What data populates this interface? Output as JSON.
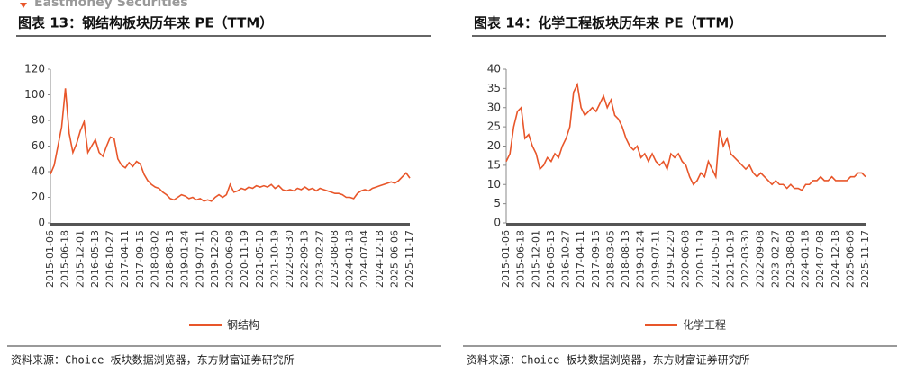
{
  "header": "Eastmoney Securities",
  "chart_data": [
    {
      "type": "line",
      "title": "图表 13：钢结构板块历年来 PE（TTM）",
      "categories": [
        "2015-01-06",
        null,
        null,
        null,
        "2015-06-18",
        null,
        null,
        null,
        "2015-12-01",
        null,
        null,
        null,
        "2016-05-13",
        null,
        null,
        null,
        "2016-10-27",
        null,
        null,
        null,
        "2017-04-11",
        null,
        null,
        null,
        "2017-09-15",
        null,
        null,
        null,
        "2018-03-02",
        null,
        null,
        null,
        "2018-08-13",
        null,
        null,
        null,
        "2019-01-24",
        null,
        null,
        null,
        "2019-07-11",
        null,
        null,
        null,
        "2019-12-20",
        null,
        null,
        null,
        "2020-06-08",
        null,
        null,
        null,
        "2020-11-19",
        null,
        null,
        null,
        "2021-05-10",
        null,
        null,
        null,
        "2021-10-19",
        null,
        null,
        null,
        "2022-03-30",
        null,
        null,
        null,
        "2022-09-13",
        null,
        null,
        null,
        "2023-02-27",
        null,
        null,
        null,
        "2023-08-08",
        null,
        null,
        null,
        "2024-01-18",
        null,
        null,
        null,
        "2024-07-04",
        null,
        null,
        null,
        "2024-12-18",
        null,
        null,
        null,
        "2025-06-06",
        null,
        null,
        null,
        "2025-11-17"
      ],
      "series": [
        {
          "name": "钢结构",
          "color": "#e8562a",
          "values": [
            38,
            45,
            60,
            75,
            105,
            70,
            55,
            62,
            72,
            79,
            55,
            60,
            65,
            55,
            52,
            60,
            67,
            66,
            50,
            45,
            43,
            47,
            44,
            48,
            46,
            38,
            33,
            30,
            28,
            27,
            24,
            22,
            19,
            18,
            20,
            22,
            21,
            19,
            20,
            18,
            19,
            17,
            18,
            17,
            20,
            22,
            20,
            22,
            30,
            24,
            25,
            27,
            26,
            28,
            27,
            29,
            28,
            29,
            28,
            30,
            27,
            29,
            26,
            25,
            26,
            25,
            27,
            26,
            28,
            26,
            27,
            25,
            27,
            26,
            25,
            24,
            23,
            23,
            22,
            20,
            20,
            19,
            23,
            25,
            26,
            25,
            27,
            28,
            29,
            30,
            31,
            32,
            31,
            33,
            36,
            39,
            35
          ]
        }
      ],
      "ylim": [
        0,
        120
      ],
      "yticks": [
        0,
        20,
        40,
        60,
        80,
        100,
        120
      ],
      "source": "资料来源：Choice 板块数据浏览器，东方财富证券研究所"
    },
    {
      "type": "line",
      "title": "图表 14：化学工程板块历年来 PE（TTM）",
      "categories": [
        "2015-01-06",
        null,
        null,
        null,
        "2015-06-18",
        null,
        null,
        null,
        "2015-12-01",
        null,
        null,
        null,
        "2016-05-13",
        null,
        null,
        null,
        "2016-10-27",
        null,
        null,
        null,
        "2017-04-11",
        null,
        null,
        null,
        "2017-09-15",
        null,
        null,
        null,
        "2018-03-05",
        null,
        null,
        null,
        "2018-08-13",
        null,
        null,
        null,
        "2019-01-24",
        null,
        null,
        null,
        "2019-07-11",
        null,
        null,
        null,
        "2019-12-20",
        null,
        null,
        null,
        "2020-06-08",
        null,
        null,
        null,
        "2020-11-19",
        null,
        null,
        null,
        "2021-05-10",
        null,
        null,
        null,
        "2021-10-19",
        null,
        null,
        null,
        "2022-03-30",
        null,
        null,
        null,
        "2022-09-08",
        null,
        null,
        null,
        "2023-02-27",
        null,
        null,
        null,
        "2023-08-08",
        null,
        null,
        null,
        "2024-01-18",
        null,
        null,
        null,
        "2024-07-08",
        null,
        null,
        null,
        "2024-12-18",
        null,
        null,
        null,
        "2025-06-06",
        null,
        null,
        null,
        "2025-11-17"
      ],
      "series": [
        {
          "name": "化学工程",
          "color": "#e8562a",
          "values": [
            16,
            18,
            25,
            29,
            30,
            22,
            23,
            20,
            18,
            14,
            15,
            17,
            16,
            18,
            17,
            20,
            22,
            25,
            34,
            36,
            30,
            28,
            29,
            30,
            29,
            31,
            33,
            30,
            32,
            28,
            27,
            25,
            22,
            20,
            19,
            20,
            17,
            18,
            16,
            18,
            16,
            15,
            16,
            14,
            18,
            17,
            18,
            16,
            15,
            12,
            10,
            11,
            13,
            12,
            16,
            14,
            12,
            24,
            20,
            22,
            18,
            17,
            16,
            15,
            14,
            15,
            13,
            12,
            13,
            12,
            11,
            10,
            11,
            10,
            10,
            9,
            10,
            9,
            9,
            8.5,
            10,
            10,
            11,
            11,
            12,
            11,
            11,
            12,
            11,
            11,
            11,
            11,
            12,
            12,
            13,
            13,
            12
          ]
        }
      ],
      "ylim": [
        0,
        40
      ],
      "yticks": [
        0,
        5,
        10,
        15,
        20,
        25,
        30,
        35,
        40
      ],
      "source": "资料来源：Choice 板块数据浏览器，东方财富证券研究所"
    }
  ]
}
